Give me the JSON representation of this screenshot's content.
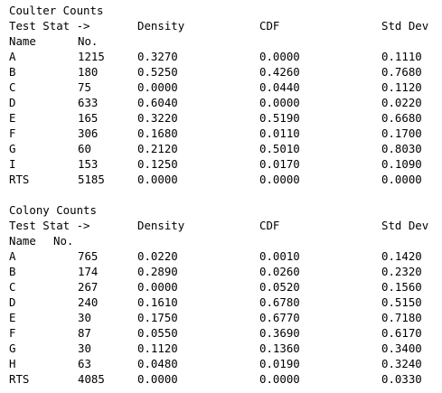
{
  "coulter": {
    "title": "Coulter Counts",
    "header": {
      "test_stat": "Test Stat ->",
      "density": "Density",
      "cdf": "CDF",
      "std_dev": "Std Dev",
      "name": "Name",
      "no": "No."
    },
    "rows": [
      {
        "name": "A",
        "no": "1215",
        "density": "0.3270",
        "cdf": "0.0000",
        "std_dev": "0.1110"
      },
      {
        "name": "B",
        "no": "180",
        "density": "0.5250",
        "cdf": "0.4260",
        "std_dev": "0.7680"
      },
      {
        "name": "C",
        "no": "75",
        "density": "0.0000",
        "cdf": "0.0440",
        "std_dev": "0.1120"
      },
      {
        "name": "D",
        "no": "633",
        "density": "0.6040",
        "cdf": "0.0000",
        "std_dev": "0.0220"
      },
      {
        "name": "E",
        "no": "165",
        "density": "0.3220",
        "cdf": "0.5190",
        "std_dev": "0.6680"
      },
      {
        "name": "F",
        "no": "306",
        "density": "0.1680",
        "cdf": "0.0110",
        "std_dev": "0.1700"
      },
      {
        "name": "G",
        "no": "60",
        "density": "0.2120",
        "cdf": "0.5010",
        "std_dev": "0.8030"
      },
      {
        "name": "I",
        "no": "153",
        "density": "0.1250",
        "cdf": "0.0170",
        "std_dev": "0.1090"
      },
      {
        "name": "RTS",
        "no": "5185",
        "density": "0.0000",
        "cdf": "0.0000",
        "std_dev": "0.0000"
      }
    ]
  },
  "colony": {
    "title": "Colony Counts",
    "header": {
      "test_stat": "Test Stat ->",
      "density": "Density",
      "cdf": "CDF",
      "std_dev": "Std Dev",
      "name": "Name",
      "no": "No."
    },
    "rows": [
      {
        "name": "A",
        "no": "765",
        "density": "0.0220",
        "cdf": "0.0010",
        "std_dev": "0.1420"
      },
      {
        "name": "B",
        "no": "174",
        "density": "0.2890",
        "cdf": "0.0260",
        "std_dev": "0.2320"
      },
      {
        "name": "C",
        "no": "267",
        "density": "0.0000",
        "cdf": "0.0520",
        "std_dev": "0.1560"
      },
      {
        "name": "D",
        "no": "240",
        "density": "0.1610",
        "cdf": "0.6780",
        "std_dev": "0.5150"
      },
      {
        "name": "E",
        "no": "30",
        "density": "0.1750",
        "cdf": "0.6770",
        "std_dev": "0.7180"
      },
      {
        "name": "F",
        "no": "87",
        "density": "0.0550",
        "cdf": "0.3690",
        "std_dev": "0.6170"
      },
      {
        "name": "G",
        "no": "30",
        "density": "0.1120",
        "cdf": "0.1360",
        "std_dev": "0.3400"
      },
      {
        "name": "H",
        "no": "63",
        "density": "0.0480",
        "cdf": "0.0190",
        "std_dev": "0.3240"
      },
      {
        "name": "RTS",
        "no": "4085",
        "density": "0.0000",
        "cdf": "0.0000",
        "std_dev": "0.0330"
      }
    ]
  }
}
